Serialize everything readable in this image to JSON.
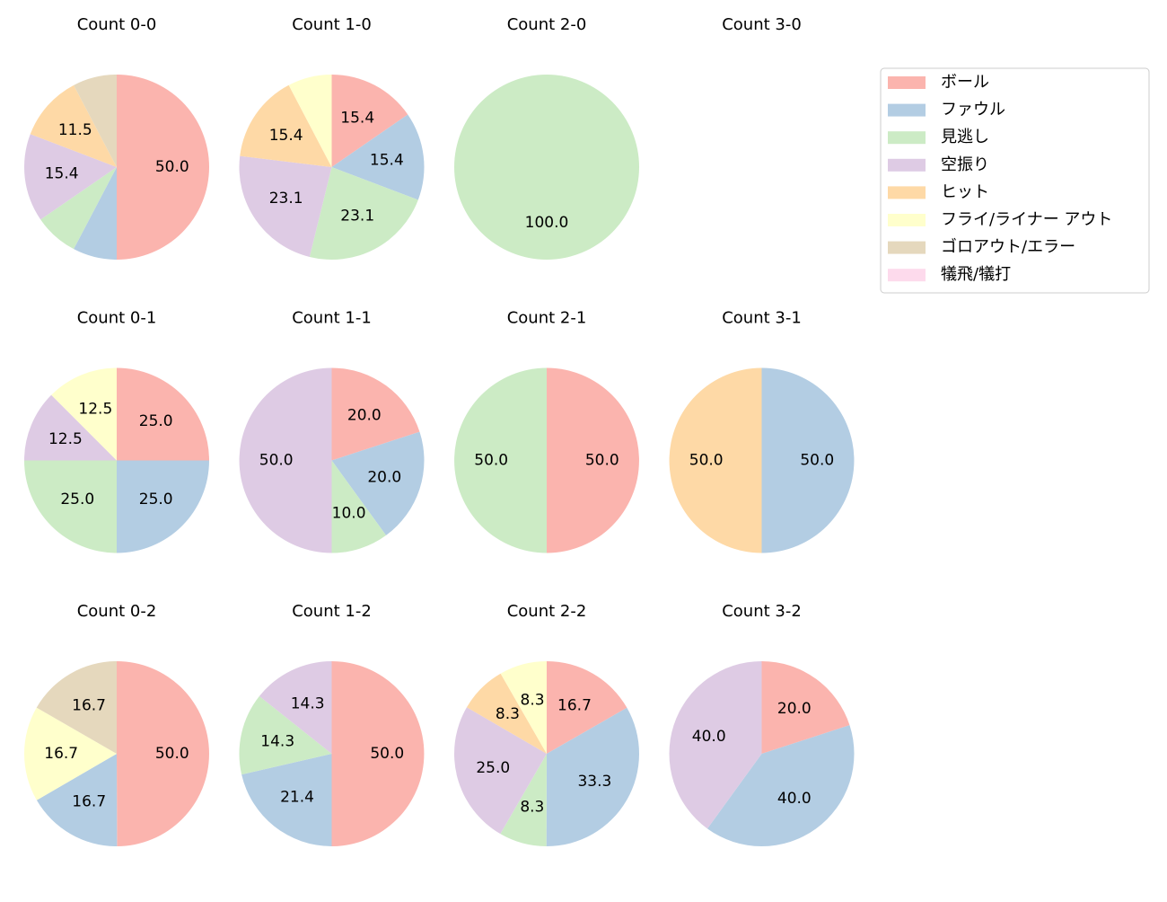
{
  "legend": {
    "labels": [
      "ボール",
      "ファウル",
      "見逃し",
      "空振り",
      "ヒット",
      "フライ/ライナー アウト",
      "ゴロアウト/エラー",
      "犠飛/犠打"
    ],
    "colors": [
      "#fbb4ae",
      "#b3cde3",
      "#ccebc5",
      "#decbe4",
      "#fed9a6",
      "#ffffcc",
      "#e5d8bd",
      "#fddaec"
    ]
  },
  "chart_data": [
    {
      "type": "pie",
      "title": "Count 0-0",
      "values": [
        50.0,
        7.7,
        7.7,
        15.4,
        11.5,
        0,
        7.7,
        0
      ],
      "value_labels": [
        "50.0",
        null,
        null,
        "15.4",
        "11.5",
        null,
        null,
        null
      ]
    },
    {
      "type": "pie",
      "title": "Count 1-0",
      "values": [
        15.4,
        15.4,
        23.1,
        23.1,
        15.4,
        7.7,
        0,
        0
      ],
      "value_labels": [
        "15.4",
        "15.4",
        "23.1",
        "23.1",
        "15.4",
        null,
        null,
        null
      ]
    },
    {
      "type": "pie",
      "title": "Count 2-0",
      "values": [
        0,
        0,
        100.0,
        0,
        0,
        0,
        0,
        0
      ],
      "value_labels": [
        null,
        null,
        "100.0",
        null,
        null,
        null,
        null,
        null
      ]
    },
    {
      "type": "pie",
      "title": "Count 3-0",
      "values": [
        0,
        0,
        0,
        0,
        0,
        0,
        0,
        0
      ],
      "value_labels": [
        null,
        null,
        null,
        null,
        null,
        null,
        null,
        null
      ]
    },
    {
      "type": "pie",
      "title": "Count 0-1",
      "values": [
        25.0,
        25.0,
        25.0,
        12.5,
        0,
        12.5,
        0,
        0
      ],
      "value_labels": [
        "25.0",
        "25.0",
        "25.0",
        "12.5",
        null,
        "12.5",
        null,
        null
      ]
    },
    {
      "type": "pie",
      "title": "Count 1-1",
      "values": [
        20.0,
        20.0,
        10.0,
        50.0,
        0,
        0,
        0,
        0
      ],
      "value_labels": [
        "20.0",
        "20.0",
        "10.0",
        "50.0",
        null,
        null,
        null,
        null
      ]
    },
    {
      "type": "pie",
      "title": "Count 2-1",
      "values": [
        50.0,
        0,
        50.0,
        0,
        0,
        0,
        0,
        0
      ],
      "value_labels": [
        "50.0",
        null,
        "50.0",
        null,
        null,
        null,
        null,
        null
      ]
    },
    {
      "type": "pie",
      "title": "Count 3-1",
      "values": [
        0,
        50.0,
        0,
        0,
        50.0,
        0,
        0,
        0
      ],
      "value_labels": [
        null,
        "50.0",
        null,
        null,
        "50.0",
        null,
        null,
        null
      ]
    },
    {
      "type": "pie",
      "title": "Count 0-2",
      "values": [
        50.0,
        16.7,
        0,
        0,
        0,
        16.7,
        16.7,
        0
      ],
      "value_labels": [
        "50.0",
        "16.7",
        null,
        null,
        null,
        "16.7",
        "16.7",
        null
      ]
    },
    {
      "type": "pie",
      "title": "Count 1-2",
      "values": [
        50.0,
        21.4,
        14.3,
        14.3,
        0,
        0,
        0,
        0
      ],
      "value_labels": [
        "50.0",
        "21.4",
        "14.3",
        "14.3",
        null,
        null,
        null,
        null
      ]
    },
    {
      "type": "pie",
      "title": "Count 2-2",
      "values": [
        16.7,
        33.3,
        8.3,
        25.0,
        8.3,
        8.3,
        0,
        0
      ],
      "value_labels": [
        "16.7",
        "33.3",
        "8.3",
        "25.0",
        "8.3",
        "8.3",
        null,
        null
      ]
    },
    {
      "type": "pie",
      "title": "Count 3-2",
      "values": [
        20.0,
        40.0,
        0,
        40.0,
        0,
        0,
        0,
        0
      ],
      "value_labels": [
        "20.0",
        "40.0",
        null,
        "40.0",
        null,
        null,
        null,
        null
      ]
    }
  ]
}
